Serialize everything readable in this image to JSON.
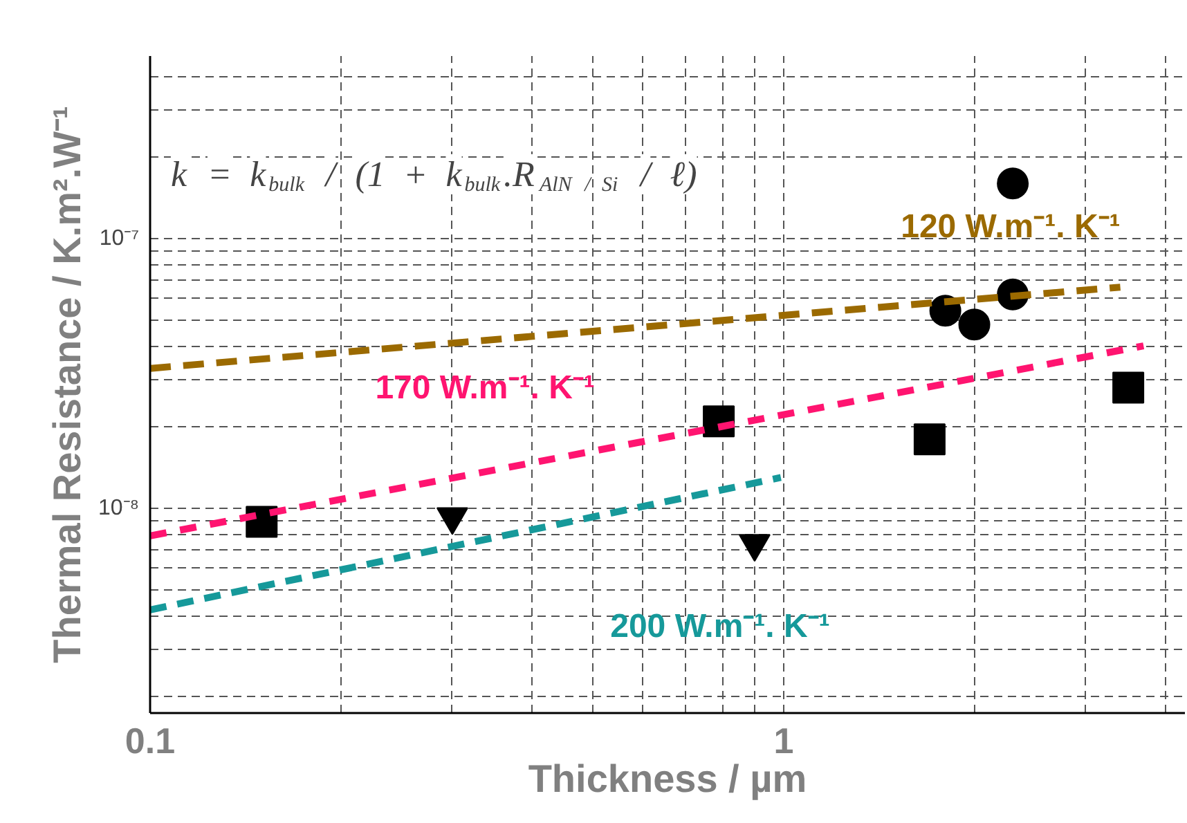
{
  "chart_data": {
    "type": "scatter",
    "xlabel": "Thickness / µm",
    "ylabel": "Thermal Resistance / K.m².W⁻¹",
    "log": "xy",
    "grid": true,
    "xlim": [
      0.1,
      4.3
    ],
    "ylim": [
      1.74e-09,
      4.75e-07
    ],
    "xticks": [
      0.1,
      1
    ],
    "yticks": [
      {
        "value": 1e-08,
        "label": "10⁻⁸"
      },
      {
        "value": 1e-07,
        "label": "10⁻⁷"
      }
    ],
    "annotations": [
      "k = k$_{bulk}$ / (1 + k$_{bulk}$.R$_{AlN / Si}$ / ℓ)"
    ],
    "series": [
      {
        "marker": "square",
        "color": "#000000",
        "x": [
          0.15,
          0.79,
          1.7,
          3.5
        ],
        "values": [
          8.9e-09,
          2.1e-08,
          1.8e-08,
          2.8e-08
        ]
      },
      {
        "marker": "circle",
        "color": "#000000",
        "x": [
          1.8,
          2.0,
          2.3,
          2.3
        ],
        "values": [
          5.4e-08,
          4.8e-08,
          1.6e-07,
          6.2e-08
        ]
      },
      {
        "marker": "triangle",
        "color": "#000000",
        "x": [
          0.3,
          0.9
        ],
        "values": [
          9.3e-09,
          7.4e-09
        ]
      },
      {
        "type": "line",
        "name": "120 W.m⁻¹. K⁻¹",
        "color": "#9b6a00",
        "line_style": "dashed",
        "x": [
          0.1,
          3.4
        ],
        "values": [
          3.3e-08,
          6.6e-08
        ]
      },
      {
        "type": "line",
        "name": "170 W.m⁻¹. K⁻¹",
        "color": "#ff1470",
        "line_style": "dashed",
        "x": [
          0.1,
          3.7
        ],
        "values": [
          7.9e-09,
          4e-08
        ]
      },
      {
        "type": "line",
        "name": "200 W.m⁻¹. K⁻¹",
        "color": "#16999a",
        "line_style": "dashed",
        "x": [
          0.1,
          0.99
        ],
        "values": [
          4.2e-09,
          1.3e-08
        ]
      }
    ]
  }
}
